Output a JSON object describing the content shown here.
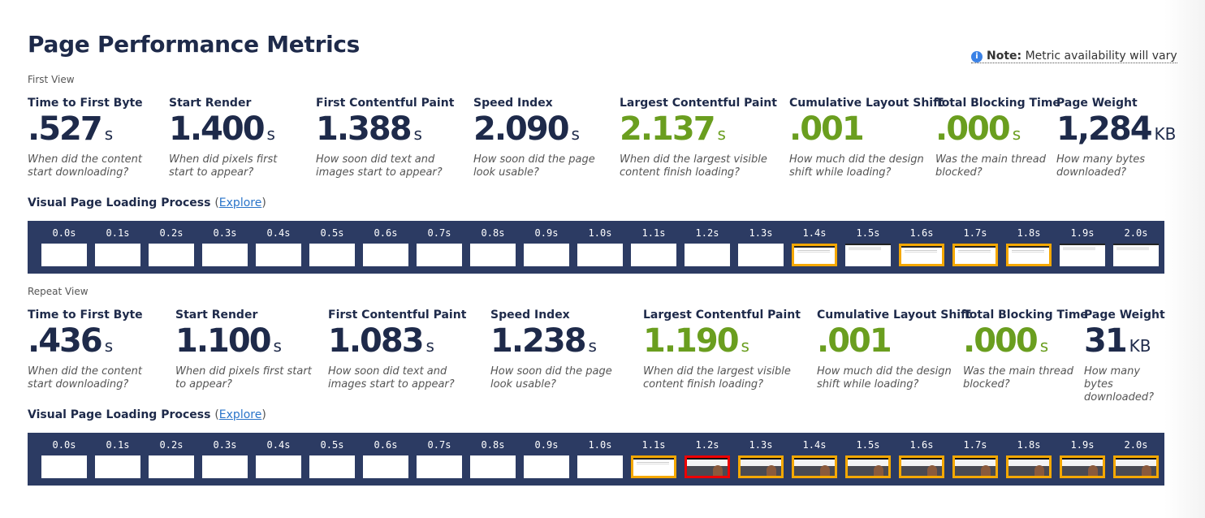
{
  "title": "Page Performance Metrics",
  "note": {
    "label": "Note:",
    "text": "Metric availability will vary",
    "icon": "info-icon"
  },
  "views": [
    {
      "name": "First View",
      "metrics": [
        {
          "label": "Time to First Byte",
          "value": ".527",
          "unit": "s",
          "desc": "When did the content start downloading?",
          "color": "navy"
        },
        {
          "label": "Start Render",
          "value": "1.400",
          "unit": "s",
          "desc": "When did pixels first start to appear?",
          "color": "navy"
        },
        {
          "label": "First Contentful Paint",
          "value": "1.388",
          "unit": "s",
          "desc": "How soon did text and images start to appear?",
          "color": "navy"
        },
        {
          "label": "Speed Index",
          "value": "2.090",
          "unit": "s",
          "desc": "How soon did the page look usable?",
          "color": "navy"
        },
        {
          "label": "Largest Contentful Paint",
          "value": "2.137",
          "unit": "s",
          "desc": "When did the largest visible content finish loading?",
          "color": "green"
        },
        {
          "label": "Cumulative Layout Shift",
          "value": ".001",
          "unit": "",
          "desc": "How much did the design shift while loading?",
          "color": "green"
        },
        {
          "label": "Total Blocking Time",
          "value": ".000",
          "unit": "s",
          "desc": "Was the main thread blocked?",
          "color": "green"
        },
        {
          "label": "Page Weight",
          "value": "1,284",
          "unit": "KB",
          "desc": "How many bytes downloaded?",
          "color": "navy"
        }
      ],
      "vpl": {
        "label": "Visual Page Loading Process",
        "open": "(",
        "link": "Explore",
        "close": ")"
      },
      "frames": [
        {
          "t": "0.0s",
          "b": "",
          "c": "blank"
        },
        {
          "t": "0.1s",
          "b": "",
          "c": "blank"
        },
        {
          "t": "0.2s",
          "b": "",
          "c": "blank"
        },
        {
          "t": "0.3s",
          "b": "",
          "c": "blank"
        },
        {
          "t": "0.4s",
          "b": "",
          "c": "blank"
        },
        {
          "t": "0.5s",
          "b": "",
          "c": "blank"
        },
        {
          "t": "0.6s",
          "b": "",
          "c": "blank"
        },
        {
          "t": "0.7s",
          "b": "",
          "c": "blank"
        },
        {
          "t": "0.8s",
          "b": "",
          "c": "blank"
        },
        {
          "t": "0.9s",
          "b": "",
          "c": "blank"
        },
        {
          "t": "1.0s",
          "b": "",
          "c": "blank"
        },
        {
          "t": "1.1s",
          "b": "",
          "c": "blank"
        },
        {
          "t": "1.2s",
          "b": "",
          "c": "blank"
        },
        {
          "t": "1.3s",
          "b": "",
          "c": "blank"
        },
        {
          "t": "1.4s",
          "b": "changed",
          "c": "text"
        },
        {
          "t": "1.5s",
          "b": "",
          "c": "text"
        },
        {
          "t": "1.6s",
          "b": "changed",
          "c": "text"
        },
        {
          "t": "1.7s",
          "b": "changed",
          "c": "text"
        },
        {
          "t": "1.8s",
          "b": "changed",
          "c": "text"
        },
        {
          "t": "1.9s",
          "b": "",
          "c": "text"
        },
        {
          "t": "2.0s",
          "b": "",
          "c": "text"
        }
      ]
    },
    {
      "name": "Repeat View",
      "metrics": [
        {
          "label": "Time to First Byte",
          "value": ".436",
          "unit": "s",
          "desc": "When did the content start downloading?",
          "color": "navy"
        },
        {
          "label": "Start Render",
          "value": "1.100",
          "unit": "s",
          "desc": "When did pixels first start to appear?",
          "color": "navy"
        },
        {
          "label": "First Contentful Paint",
          "value": "1.083",
          "unit": "s",
          "desc": "How soon did text and images start to appear?",
          "color": "navy"
        },
        {
          "label": "Speed Index",
          "value": "1.238",
          "unit": "s",
          "desc": "How soon did the page look usable?",
          "color": "navy"
        },
        {
          "label": "Largest Contentful Paint",
          "value": "1.190",
          "unit": "s",
          "desc": "When did the largest visible content finish loading?",
          "color": "green"
        },
        {
          "label": "Cumulative Layout Shift",
          "value": ".001",
          "unit": "",
          "desc": "How much did the design shift while loading?",
          "color": "green"
        },
        {
          "label": "Total Blocking Time",
          "value": ".000",
          "unit": "s",
          "desc": "Was the main thread blocked?",
          "color": "green"
        },
        {
          "label": "Page Weight",
          "value": "31",
          "unit": "KB",
          "desc": "How many bytes downloaded?",
          "color": "navy"
        }
      ],
      "vpl": {
        "label": "Visual Page Loading Process",
        "open": "(",
        "link": "Explore",
        "close": ")"
      },
      "frames": [
        {
          "t": "0.0s",
          "b": "",
          "c": "blank"
        },
        {
          "t": "0.1s",
          "b": "",
          "c": "blank"
        },
        {
          "t": "0.2s",
          "b": "",
          "c": "blank"
        },
        {
          "t": "0.3s",
          "b": "",
          "c": "blank"
        },
        {
          "t": "0.4s",
          "b": "",
          "c": "blank"
        },
        {
          "t": "0.5s",
          "b": "",
          "c": "blank"
        },
        {
          "t": "0.6s",
          "b": "",
          "c": "blank"
        },
        {
          "t": "0.7s",
          "b": "",
          "c": "blank"
        },
        {
          "t": "0.8s",
          "b": "",
          "c": "blank"
        },
        {
          "t": "0.9s",
          "b": "",
          "c": "blank"
        },
        {
          "t": "1.0s",
          "b": "",
          "c": "blank"
        },
        {
          "t": "1.1s",
          "b": "changed",
          "c": "text"
        },
        {
          "t": "1.2s",
          "b": "lcp",
          "c": "photo"
        },
        {
          "t": "1.3s",
          "b": "changed",
          "c": "photo"
        },
        {
          "t": "1.4s",
          "b": "changed",
          "c": "photo"
        },
        {
          "t": "1.5s",
          "b": "changed",
          "c": "photo"
        },
        {
          "t": "1.6s",
          "b": "changed",
          "c": "photo"
        },
        {
          "t": "1.7s",
          "b": "changed",
          "c": "photo"
        },
        {
          "t": "1.8s",
          "b": "changed",
          "c": "photo"
        },
        {
          "t": "1.9s",
          "b": "changed",
          "c": "photo"
        },
        {
          "t": "2.0s",
          "b": "changed",
          "c": "photo"
        }
      ]
    }
  ]
}
